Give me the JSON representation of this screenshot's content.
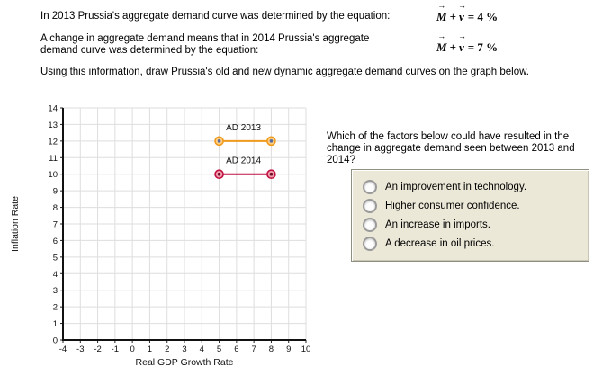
{
  "intro": {
    "line1": "In 2013 Prussia's aggregate demand curve was determined by the equation:",
    "line2": "A change in aggregate demand means that in 2014 Prussia's aggregate demand curve was determined by the equation:",
    "line3": "Using this information, draw Prussia's old and new dynamic aggregate demand curves on the graph below."
  },
  "equations": {
    "arrow": "→",
    "eq1": {
      "var1": "M",
      "op": "+",
      "var2": "v",
      "rhs": "= 4 %"
    },
    "eq2": {
      "var1": "M",
      "op": "+",
      "var2": "v",
      "rhs": "= 7 %"
    }
  },
  "chart_data": {
    "type": "line",
    "title": "",
    "xlabel": "Real GDP Growth Rate",
    "ylabel": "Inflation Rate",
    "xlim": [
      -4,
      10
    ],
    "ylim": [
      0,
      14
    ],
    "xtick_step": 1,
    "ytick_step": 1,
    "grid": true,
    "legend_position": "inline-labels",
    "series": [
      {
        "name": "AD 2013",
        "points": [
          [
            5,
            12
          ],
          [
            8,
            12
          ]
        ],
        "color": "#f09a1e",
        "point_fill": "#ffd083",
        "point_center": "#5a6b9e",
        "label_pos": [
          6.4,
          12.65
        ]
      },
      {
        "name": "AD 2014",
        "points": [
          [
            5,
            10
          ],
          [
            8,
            10
          ]
        ],
        "color": "#c01243",
        "point_fill": "#f2a0ae",
        "point_center": "#6e0e2c",
        "label_pos": [
          6.4,
          10.65
        ]
      }
    ]
  },
  "question": {
    "text": "Which of the factors below could have resulted in the change in aggregate demand seen between 2013 and 2014?",
    "options": [
      "An improvement in technology.",
      "Higher consumer confidence.",
      "An increase in imports.",
      "A decrease in oil prices."
    ]
  }
}
